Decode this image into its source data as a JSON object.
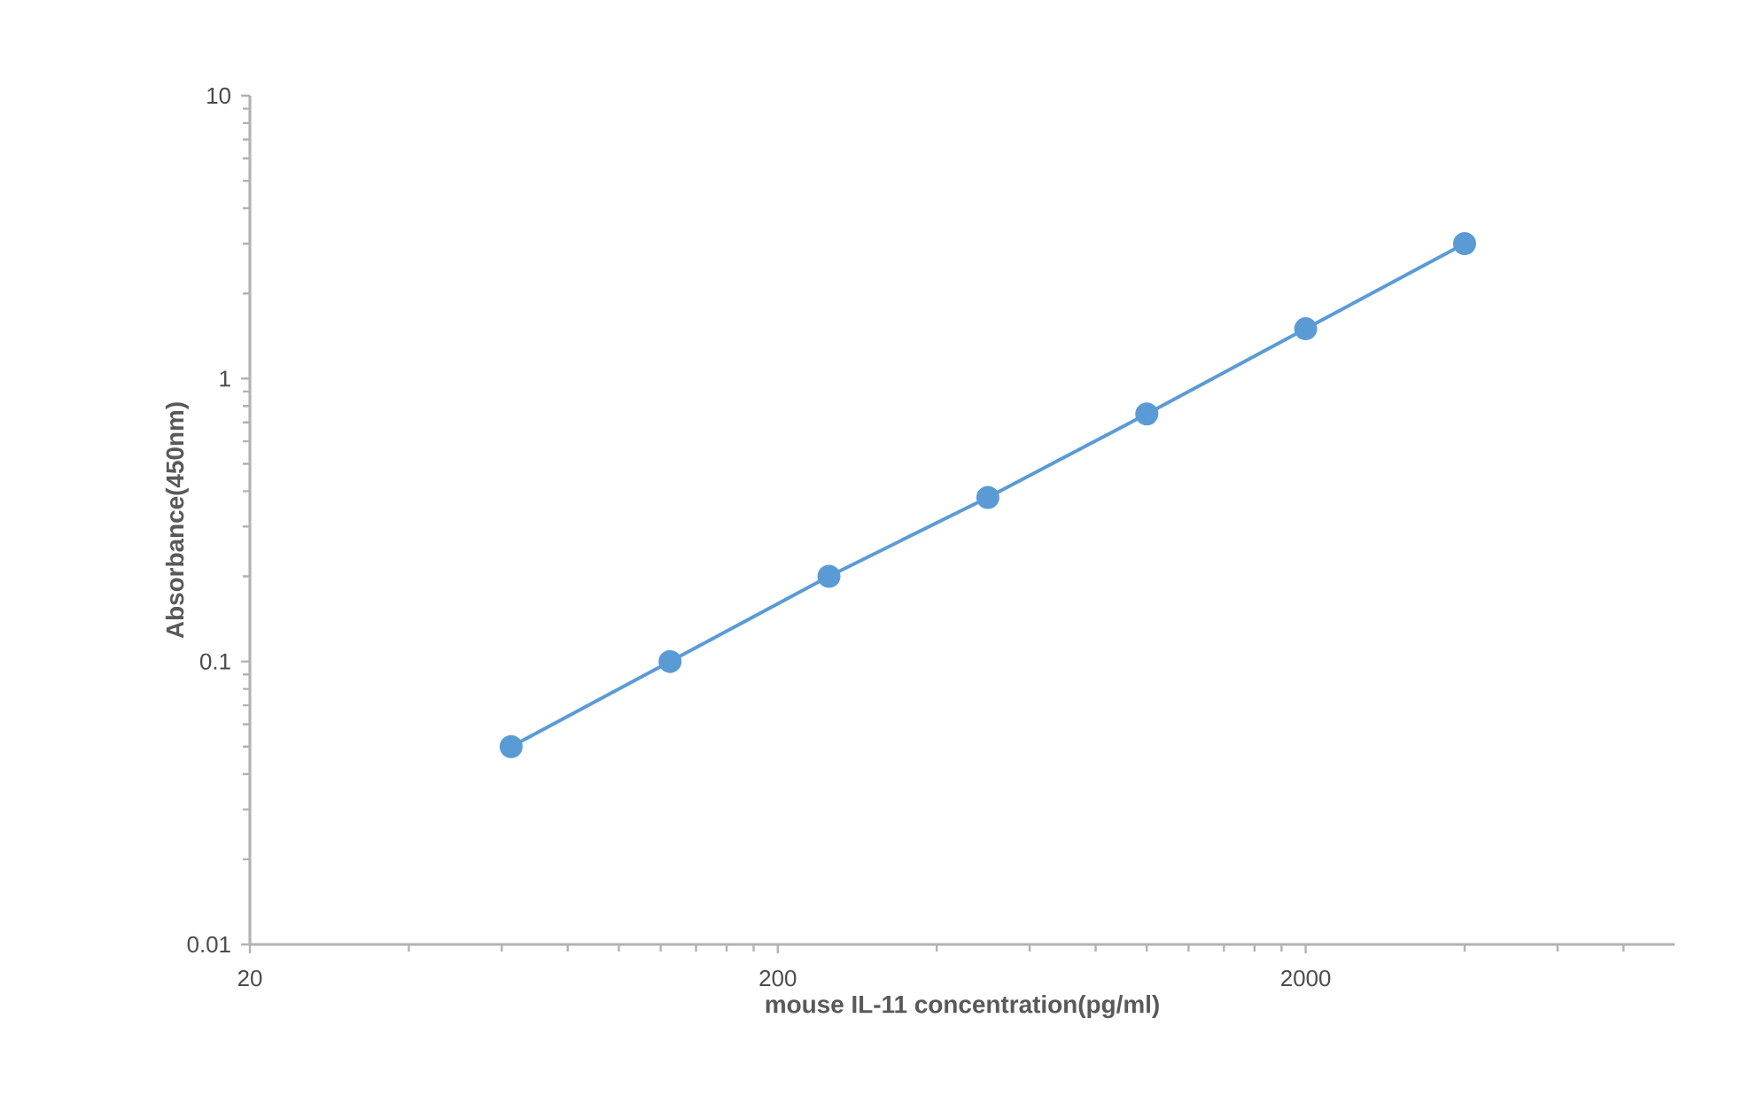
{
  "chart_data": {
    "type": "line",
    "xlabel": "mouse IL-11 concentration(pg/ml)",
    "ylabel": "Absorbance(450nm)",
    "log": "xy",
    "x": [
      62.5,
      125,
      250,
      500,
      1000,
      2000,
      4000
    ],
    "series": [
      {
        "color": "#5b9bd5",
        "values": [
          0.05,
          0.1,
          0.2,
          0.38,
          0.75,
          1.5,
          3.0
        ]
      }
    ],
    "xlim": [
      20,
      10000
    ],
    "ylim": [
      0.01,
      10
    ],
    "xticks": [
      20,
      200,
      2000
    ],
    "yticks": [
      0.01,
      0.1,
      1,
      10
    ],
    "grid": false,
    "marker": "circle",
    "line_style": "solid"
  }
}
